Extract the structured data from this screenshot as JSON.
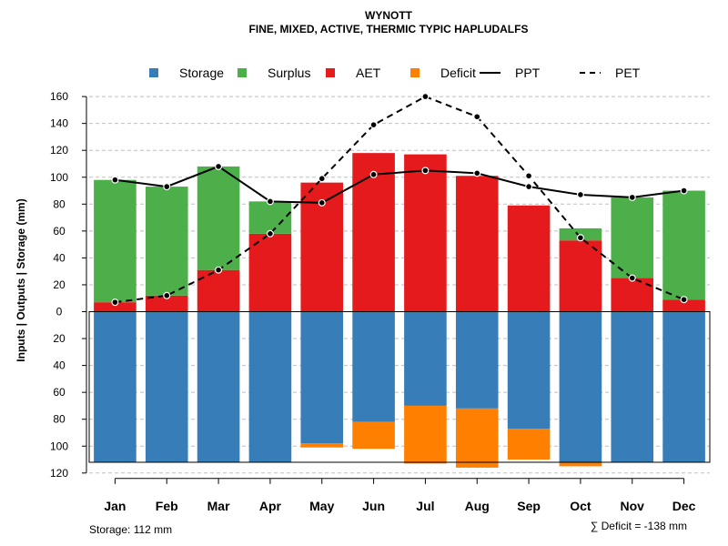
{
  "chart_data": {
    "type": "bar",
    "title": "WYNOTT",
    "subtitle": "FINE, MIXED, ACTIVE, THERMIC TYPIC HAPLUDALFS",
    "ylabel": "Inputs | Outputs | Storage    (mm)",
    "ylim": [
      -120,
      160
    ],
    "yticks": [
      160,
      140,
      120,
      100,
      80,
      60,
      40,
      20,
      0,
      -20,
      -40,
      -60,
      -80,
      -100,
      -120
    ],
    "ytick_labels": [
      "160",
      "140",
      "120",
      "100",
      "80",
      "60",
      "40",
      "20",
      "0",
      "20",
      "40",
      "60",
      "80",
      "100",
      "120"
    ],
    "grid": true,
    "legend_position": "top",
    "categories": [
      "Jan",
      "Feb",
      "Mar",
      "Apr",
      "May",
      "Jun",
      "Jul",
      "Aug",
      "Sep",
      "Oct",
      "Nov",
      "Dec"
    ],
    "legend": [
      {
        "label": "Storage",
        "kind": "box",
        "color": "#377eb8"
      },
      {
        "label": "Surplus",
        "kind": "box",
        "color": "#4daf4a"
      },
      {
        "label": "AET",
        "kind": "box",
        "color": "#e41a1c"
      },
      {
        "label": "Deficit",
        "kind": "box",
        "color": "#ff7f00"
      },
      {
        "label": "PPT",
        "kind": "solid-line",
        "color": "#000000"
      },
      {
        "label": "PET",
        "kind": "dashed-line",
        "color": "#000000"
      }
    ],
    "series": [
      {
        "name": "AET",
        "color": "#e41a1c",
        "values": [
          7,
          12,
          31,
          58,
          96,
          118,
          117,
          101,
          79,
          53,
          25,
          9
        ]
      },
      {
        "name": "Surplus",
        "color": "#4daf4a",
        "values": [
          91,
          81,
          77,
          24,
          0,
          0,
          0,
          0,
          0,
          9,
          60,
          81
        ]
      },
      {
        "name": "Storage",
        "color": "#377eb8",
        "values": [
          112,
          112,
          112,
          112,
          98,
          82,
          70,
          72,
          87,
          112,
          112,
          112
        ]
      },
      {
        "name": "Deficit",
        "color": "#ff7f00",
        "values": [
          0,
          0,
          0,
          0,
          3,
          20,
          43,
          44,
          23,
          3,
          0,
          0
        ]
      },
      {
        "name": "PPT",
        "color": "#000000",
        "values": [
          98,
          93,
          108,
          82,
          81,
          102,
          105,
          103,
          93,
          87,
          85,
          90
        ]
      },
      {
        "name": "PET",
        "color": "#000000",
        "values": [
          7,
          12,
          31,
          58,
          99,
          139,
          160,
          145,
          101,
          55,
          25,
          9
        ]
      }
    ],
    "storage_capacity": 112,
    "storage_note": "Storage: 112 mm",
    "deficit_note": "∑ Deficit = -138 mm"
  }
}
